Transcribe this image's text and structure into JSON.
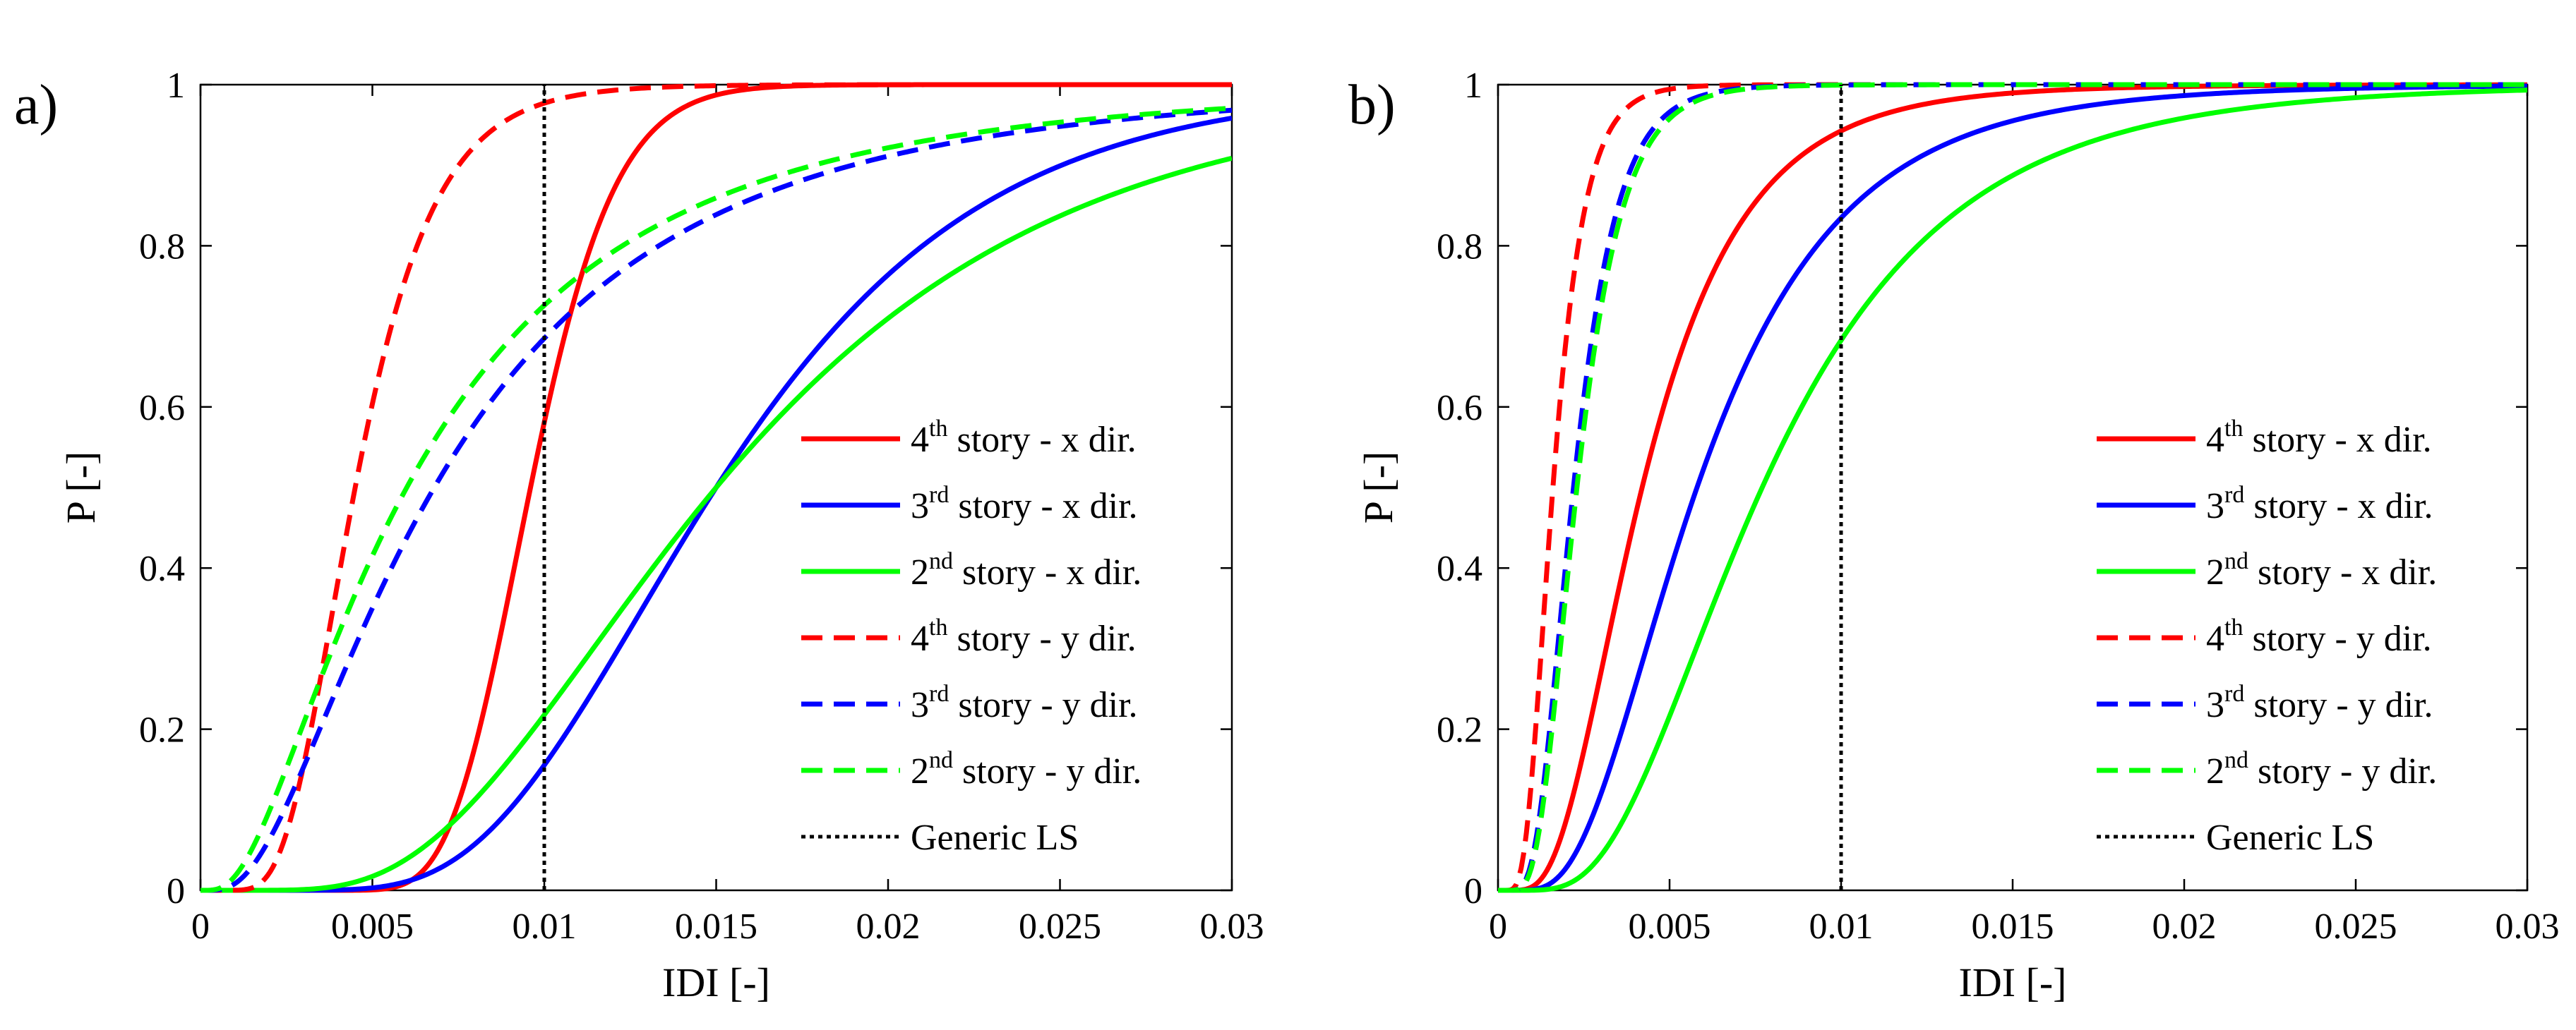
{
  "chart_data": [
    {
      "panel_label": "a)",
      "type": "line",
      "xlabel": "IDI [-]",
      "ylabel": "P [-]",
      "xlim": [
        0,
        0.03
      ],
      "ylim": [
        0,
        1
      ],
      "xticks": [
        0,
        0.005,
        0.01,
        0.015,
        0.02,
        0.025,
        0.03
      ],
      "xtick_labels": [
        "0",
        "0.005",
        "0.01",
        "0.015",
        "0.02",
        "0.025",
        "0.03"
      ],
      "yticks": [
        0,
        0.2,
        0.4,
        0.6,
        0.8,
        1
      ],
      "ytick_labels": [
        "0",
        "0.2",
        "0.4",
        "0.6",
        "0.8",
        "1"
      ],
      "legend_position": "lower-right",
      "series": [
        {
          "name": "4th story - x dir.",
          "ord": "4",
          "sup": "th",
          "rest": " story - x dir.",
          "color": "#ff0000",
          "style": "solid",
          "median": 0.0096,
          "beta": 0.2
        },
        {
          "name": "3rd story - x dir.",
          "ord": "3",
          "sup": "rd",
          "rest": " story - x dir.",
          "color": "#0000ff",
          "style": "solid",
          "median": 0.015,
          "beta": 0.4
        },
        {
          "name": "2nd story - x dir.",
          "ord": "2",
          "sup": "nd",
          "rest": " story - x dir.",
          "color": "#00ff00",
          "style": "solid",
          "median": 0.015,
          "beta": 0.52
        },
        {
          "name": "4th story - y dir.",
          "ord": "4",
          "sup": "th",
          "rest": " story - y dir.",
          "color": "#ff0000",
          "style": "dashed",
          "median": 0.0045,
          "beta": 0.4
        },
        {
          "name": "3rd story - y dir.",
          "ord": "3",
          "sup": "rd",
          "rest": " story - y dir.",
          "color": "#0000ff",
          "style": "dashed",
          "median": 0.0068,
          "beta": 0.8
        },
        {
          "name": "2nd story - y dir.",
          "ord": "2",
          "sup": "nd",
          "rest": " story - y dir.",
          "color": "#00ff00",
          "style": "dashed",
          "median": 0.006,
          "beta": 0.85
        },
        {
          "name": "Generic LS",
          "ord": "",
          "sup": "",
          "rest": "Generic LS",
          "color": "#000000",
          "style": "dotted",
          "vline_x": 0.01
        }
      ]
    },
    {
      "panel_label": "b)",
      "type": "line",
      "xlabel": "IDI [-]",
      "ylabel": "P [-]",
      "xlim": [
        0,
        0.03
      ],
      "ylim": [
        0,
        1
      ],
      "xticks": [
        0,
        0.005,
        0.01,
        0.015,
        0.02,
        0.025,
        0.03
      ],
      "xtick_labels": [
        "0",
        "0.005",
        "0.01",
        "0.015",
        "0.02",
        "0.025",
        "0.03"
      ],
      "yticks": [
        0,
        0.2,
        0.4,
        0.6,
        0.8,
        1
      ],
      "ytick_labels": [
        "0",
        "0.2",
        "0.4",
        "0.6",
        "0.8",
        "1"
      ],
      "legend_position": "lower-right",
      "series": [
        {
          "name": "4th story - x dir.",
          "ord": "4",
          "sup": "th",
          "rest": " story - x dir.",
          "color": "#ff0000",
          "style": "solid",
          "median": 0.0042,
          "beta": 0.55
        },
        {
          "name": "3rd story - x dir.",
          "ord": "3",
          "sup": "rd",
          "rest": " story - x dir.",
          "color": "#0000ff",
          "style": "solid",
          "median": 0.0058,
          "beta": 0.56
        },
        {
          "name": "2nd story - x dir.",
          "ord": "2",
          "sup": "nd",
          "rest": " story - x dir.",
          "color": "#00ff00",
          "style": "solid",
          "median": 0.0077,
          "beta": 0.55
        },
        {
          "name": "4th story - y dir.",
          "ord": "4",
          "sup": "th",
          "rest": " story - y dir.",
          "color": "#ff0000",
          "style": "dashed",
          "median": 0.0016,
          "beta": 0.45
        },
        {
          "name": "3rd story - y dir.",
          "ord": "3",
          "sup": "rd",
          "rest": " story - y dir.",
          "color": "#0000ff",
          "style": "dashed",
          "median": 0.0022,
          "beta": 0.45
        },
        {
          "name": "2nd story - y dir.",
          "ord": "2",
          "sup": "nd",
          "rest": " story - y dir.",
          "color": "#00ff00",
          "style": "dashed",
          "median": 0.0023,
          "beta": 0.45
        },
        {
          "name": "Generic LS",
          "ord": "",
          "sup": "",
          "rest": "Generic LS",
          "color": "#000000",
          "style": "dotted",
          "vline_x": 0.01
        }
      ]
    }
  ]
}
